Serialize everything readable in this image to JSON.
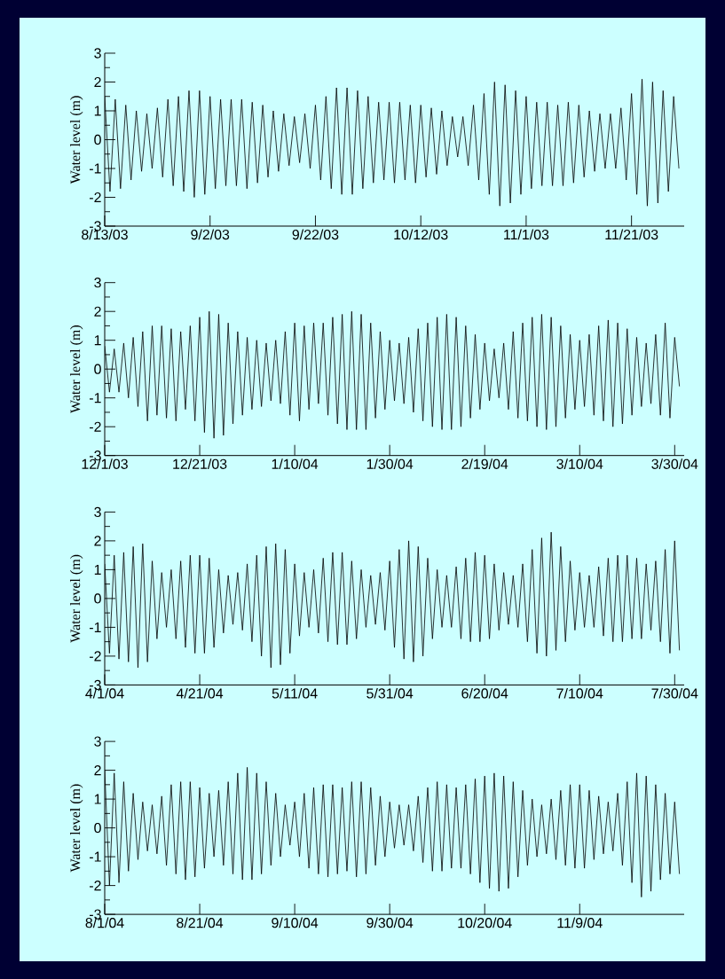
{
  "chart_data": [
    {
      "type": "line",
      "ylabel": "Water level (m)",
      "color": "#000000",
      "xlim": [
        "2003-08-13",
        "2003-12-01"
      ],
      "ylim": [
        -3,
        3
      ],
      "yticks": [
        -3,
        {
          "value": -2.5,
          "label": null
        },
        -2,
        {
          "value": -1.5,
          "label": null
        },
        -1,
        {
          "value": -0.5,
          "label": null
        },
        0,
        {
          "value": 0.5,
          "label": null
        },
        1,
        {
          "value": 1.5,
          "label": null
        },
        2,
        {
          "value": 2.5,
          "label": null
        },
        3
      ],
      "xticks": [
        {
          "value": "2003-08-13",
          "label": "8/13/03"
        },
        {
          "value": "2003-09-02",
          "label": "9/2/03"
        },
        {
          "value": "2003-09-22",
          "label": "9/22/03"
        },
        {
          "value": "2003-10-12",
          "label": "10/12/03"
        },
        {
          "value": "2003-11-01",
          "label": "11/1/03"
        },
        {
          "value": "2003-11-21",
          "label": "11/21/03"
        }
      ],
      "x": [
        "2003-08-13",
        "2003-08-14",
        "2003-08-15",
        "2003-08-16",
        "2003-08-17",
        "2003-08-18",
        "2003-08-19",
        "2003-08-20",
        "2003-08-21",
        "2003-08-22",
        "2003-08-23",
        "2003-08-24",
        "2003-08-25",
        "2003-08-26",
        "2003-08-27",
        "2003-08-28",
        "2003-08-29",
        "2003-08-30",
        "2003-08-31",
        "2003-09-01",
        "2003-09-02",
        "2003-09-03",
        "2003-09-04",
        "2003-09-05",
        "2003-09-06",
        "2003-09-07",
        "2003-09-08",
        "2003-09-09",
        "2003-09-10",
        "2003-09-11",
        "2003-09-12",
        "2003-09-13",
        "2003-09-14",
        "2003-09-15",
        "2003-09-16",
        "2003-09-17",
        "2003-09-18",
        "2003-09-19",
        "2003-09-20",
        "2003-09-21",
        "2003-09-22",
        "2003-09-23",
        "2003-09-24",
        "2003-09-25",
        "2003-09-26",
        "2003-09-27",
        "2003-09-28",
        "2003-09-29",
        "2003-09-30",
        "2003-10-01",
        "2003-10-02",
        "2003-10-03",
        "2003-10-04",
        "2003-10-05",
        "2003-10-06",
        "2003-10-07",
        "2003-10-08",
        "2003-10-09",
        "2003-10-10",
        "2003-10-11",
        "2003-10-12",
        "2003-10-13",
        "2003-10-14",
        "2003-10-15",
        "2003-10-16",
        "2003-10-17",
        "2003-10-18",
        "2003-10-19",
        "2003-10-20",
        "2003-10-21",
        "2003-10-22",
        "2003-10-23",
        "2003-10-24",
        "2003-10-25",
        "2003-10-26",
        "2003-10-27",
        "2003-10-28",
        "2003-10-29",
        "2003-10-30",
        "2003-10-31",
        "2003-11-01",
        "2003-11-02",
        "2003-11-03",
        "2003-11-04",
        "2003-11-05",
        "2003-11-06",
        "2003-11-07",
        "2003-11-08",
        "2003-11-09",
        "2003-11-10",
        "2003-11-11",
        "2003-11-12",
        "2003-11-13",
        "2003-11-14",
        "2003-11-15",
        "2003-11-16",
        "2003-11-17",
        "2003-11-18",
        "2003-11-19",
        "2003-11-20",
        "2003-11-21",
        "2003-11-22",
        "2003-11-23",
        "2003-11-24",
        "2003-11-25",
        "2003-11-26",
        "2003-11-27",
        "2003-11-28",
        "2003-11-29",
        "2003-11-30"
      ],
      "values": [
        1.5,
        -1.8,
        1.4,
        -1.7,
        1.2,
        -1.4,
        1.0,
        -1.1,
        0.9,
        -1.0,
        1.1,
        -1.3,
        1.4,
        -1.6,
        1.5,
        -1.8,
        1.7,
        -2.0,
        1.7,
        -1.9,
        1.5,
        -1.7,
        1.4,
        -1.6,
        1.4,
        -1.6,
        1.4,
        -1.7,
        1.3,
        -1.5,
        1.2,
        -1.3,
        1.0,
        -1.1,
        0.9,
        -0.9,
        0.8,
        -0.8,
        0.9,
        -1.0,
        1.2,
        -1.4,
        1.5,
        -1.7,
        1.8,
        -1.9,
        1.8,
        -1.9,
        1.7,
        -1.7,
        1.5,
        -1.5,
        1.3,
        -1.4,
        1.3,
        -1.5,
        1.3,
        -1.4,
        1.2,
        -1.5,
        1.2,
        -1.3,
        1.1,
        -1.2,
        1.0,
        -0.9,
        0.8,
        -0.6,
        0.8,
        -0.9,
        1.2,
        -1.4,
        1.6,
        -1.9,
        2.0,
        -2.3,
        1.9,
        -2.2,
        1.7,
        -1.9,
        1.5,
        -1.7,
        1.3,
        -1.6,
        1.3,
        -1.6,
        1.2,
        -1.6,
        1.3,
        -1.5,
        1.2,
        -1.3,
        1.0,
        -1.1,
        0.9,
        -1.0,
        0.9,
        -1.0,
        1.1,
        -1.4,
        1.6,
        -1.9,
        2.1,
        -2.3,
        2.0,
        -2.2,
        1.7,
        -1.8,
        1.5,
        -1.0
      ]
    },
    {
      "type": "line",
      "ylabel": "Water level (m)",
      "color": "#000000",
      "xlim": [
        "2003-12-01",
        "2004-04-01"
      ],
      "ylim": [
        -3,
        3
      ],
      "yticks": [
        -3,
        {
          "value": -2.5,
          "label": null
        },
        -2,
        {
          "value": -1.5,
          "label": null
        },
        -1,
        {
          "value": -0.5,
          "label": null
        },
        0,
        {
          "value": 0.5,
          "label": null
        },
        1,
        {
          "value": 1.5,
          "label": null
        },
        2,
        {
          "value": 2.5,
          "label": null
        },
        3
      ],
      "xticks": [
        {
          "value": "2003-12-01",
          "label": "12/1/03"
        },
        {
          "value": "2003-12-21",
          "label": "12/21/03"
        },
        {
          "value": "2004-01-10",
          "label": "1/10/04"
        },
        {
          "value": "2004-01-30",
          "label": "1/30/04"
        },
        {
          "value": "2004-02-19",
          "label": "2/19/04"
        },
        {
          "value": "2004-03-10",
          "label": "3/10/04"
        },
        {
          "value": "2004-03-30",
          "label": "3/30/04"
        }
      ],
      "x": [
        "2003-12-01",
        "2003-12-02",
        "2003-12-03",
        "2003-12-04",
        "2003-12-05",
        "2003-12-06",
        "2003-12-07",
        "2003-12-08",
        "2003-12-09",
        "2003-12-10",
        "2003-12-11",
        "2003-12-12",
        "2003-12-13",
        "2003-12-14",
        "2003-12-15",
        "2003-12-16",
        "2003-12-17",
        "2003-12-18",
        "2003-12-19",
        "2003-12-20",
        "2003-12-21",
        "2003-12-22",
        "2003-12-23",
        "2003-12-24",
        "2003-12-25",
        "2003-12-26",
        "2003-12-27",
        "2003-12-28",
        "2003-12-29",
        "2003-12-30",
        "2003-12-31",
        "2004-01-01",
        "2004-01-02",
        "2004-01-03",
        "2004-01-04",
        "2004-01-05",
        "2004-01-06",
        "2004-01-07",
        "2004-01-08",
        "2004-01-09",
        "2004-01-10",
        "2004-01-11",
        "2004-01-12",
        "2004-01-13",
        "2004-01-14",
        "2004-01-15",
        "2004-01-16",
        "2004-01-17",
        "2004-01-18",
        "2004-01-19",
        "2004-01-20",
        "2004-01-21",
        "2004-01-22",
        "2004-01-23",
        "2004-01-24",
        "2004-01-25",
        "2004-01-26",
        "2004-01-27",
        "2004-01-28",
        "2004-01-29",
        "2004-01-30",
        "2004-01-31",
        "2004-02-01",
        "2004-02-02",
        "2004-02-03",
        "2004-02-04",
        "2004-02-05",
        "2004-02-06",
        "2004-02-07",
        "2004-02-08",
        "2004-02-09",
        "2004-02-10",
        "2004-02-11",
        "2004-02-12",
        "2004-02-13",
        "2004-02-14",
        "2004-02-15",
        "2004-02-16",
        "2004-02-17",
        "2004-02-18",
        "2004-02-19",
        "2004-02-20",
        "2004-02-21",
        "2004-02-22",
        "2004-02-23",
        "2004-02-24",
        "2004-02-25",
        "2004-02-26",
        "2004-02-27",
        "2004-02-28",
        "2004-02-29",
        "2004-03-01",
        "2004-03-02",
        "2004-03-03",
        "2004-03-04",
        "2004-03-05",
        "2004-03-06",
        "2004-03-07",
        "2004-03-08",
        "2004-03-09",
        "2004-03-10",
        "2004-03-11",
        "2004-03-12",
        "2004-03-13",
        "2004-03-14",
        "2004-03-15",
        "2004-03-16",
        "2004-03-17",
        "2004-03-18",
        "2004-03-19",
        "2004-03-20",
        "2004-03-21",
        "2004-03-22",
        "2004-03-23",
        "2004-03-24",
        "2004-03-25",
        "2004-03-26",
        "2004-03-27",
        "2004-03-28",
        "2004-03-29",
        "2004-03-30",
        "2004-03-31"
      ],
      "values": [
        0.8,
        -0.8,
        0.7,
        -0.8,
        0.9,
        -1.0,
        1.1,
        -1.3,
        1.3,
        -1.8,
        1.5,
        -1.6,
        1.5,
        -1.7,
        1.4,
        -1.8,
        1.3,
        -1.4,
        1.5,
        -1.8,
        1.8,
        -2.2,
        2.0,
        -2.4,
        1.9,
        -2.3,
        1.6,
        -1.9,
        1.3,
        -1.6,
        1.1,
        -1.4,
        1.0,
        -1.3,
        0.9,
        -1.1,
        1.0,
        -1.2,
        1.3,
        -1.6,
        1.6,
        -1.8,
        1.5,
        -1.4,
        1.6,
        -1.2,
        1.6,
        -1.6,
        1.8,
        -1.9,
        1.9,
        -2.1,
        2.0,
        -2.1,
        1.9,
        -2.1,
        1.6,
        -1.7,
        1.3,
        -1.4,
        1.0,
        -1.1,
        0.9,
        -1.2,
        1.1,
        -1.5,
        1.4,
        -1.8,
        1.6,
        -2.0,
        1.8,
        -2.1,
        1.9,
        -2.1,
        1.8,
        -2.0,
        1.5,
        -1.7,
        1.2,
        -1.4,
        0.9,
        -1.1,
        0.7,
        -1.0,
        0.9,
        -1.4,
        1.3,
        -1.7,
        1.6,
        -1.8,
        1.8,
        -2.0,
        1.9,
        -2.1,
        1.8,
        -2.0,
        1.5,
        -1.7,
        1.2,
        -1.4,
        1.0,
        -1.3,
        1.2,
        -1.6,
        1.5,
        -1.8,
        1.7,
        -2.0,
        1.6,
        -1.9,
        1.4,
        -1.6,
        1.1,
        -1.3,
        0.9,
        -1.2,
        1.2,
        -1.6,
        1.6,
        -1.7,
        1.1,
        -0.6
      ]
    },
    {
      "type": "line",
      "ylabel": "Water level (m)",
      "color": "#000000",
      "xlim": [
        "2004-04-01",
        "2004-08-01"
      ],
      "ylim": [
        -3,
        3
      ],
      "yticks": [
        -3,
        {
          "value": -2.5,
          "label": null
        },
        -2,
        {
          "value": -1.5,
          "label": null
        },
        -1,
        {
          "value": -0.5,
          "label": null
        },
        0,
        {
          "value": 0.5,
          "label": null
        },
        1,
        {
          "value": 1.5,
          "label": null
        },
        2,
        {
          "value": 2.5,
          "label": null
        },
        3
      ],
      "xticks": [
        {
          "value": "2004-04-01",
          "label": "4/1/04"
        },
        {
          "value": "2004-04-21",
          "label": "4/21/04"
        },
        {
          "value": "2004-05-11",
          "label": "5/11/04"
        },
        {
          "value": "2004-05-31",
          "label": "5/31/04"
        },
        {
          "value": "2004-06-20",
          "label": "6/20/04"
        },
        {
          "value": "2004-07-10",
          "label": "7/10/04"
        },
        {
          "value": "2004-07-30",
          "label": "7/30/04"
        }
      ],
      "x": [
        "2004-04-01",
        "2004-04-02",
        "2004-04-03",
        "2004-04-04",
        "2004-04-05",
        "2004-04-06",
        "2004-04-07",
        "2004-04-08",
        "2004-04-09",
        "2004-04-10",
        "2004-04-11",
        "2004-04-12",
        "2004-04-13",
        "2004-04-14",
        "2004-04-15",
        "2004-04-16",
        "2004-04-17",
        "2004-04-18",
        "2004-04-19",
        "2004-04-20",
        "2004-04-21",
        "2004-04-22",
        "2004-04-23",
        "2004-04-24",
        "2004-04-25",
        "2004-04-26",
        "2004-04-27",
        "2004-04-28",
        "2004-04-29",
        "2004-04-30",
        "2004-05-01",
        "2004-05-02",
        "2004-05-03",
        "2004-05-04",
        "2004-05-05",
        "2004-05-06",
        "2004-05-07",
        "2004-05-08",
        "2004-05-09",
        "2004-05-10",
        "2004-05-11",
        "2004-05-12",
        "2004-05-13",
        "2004-05-14",
        "2004-05-15",
        "2004-05-16",
        "2004-05-17",
        "2004-05-18",
        "2004-05-19",
        "2004-05-20",
        "2004-05-21",
        "2004-05-22",
        "2004-05-23",
        "2004-05-24",
        "2004-05-25",
        "2004-05-26",
        "2004-05-27",
        "2004-05-28",
        "2004-05-29",
        "2004-05-30",
        "2004-05-31",
        "2004-06-01",
        "2004-06-02",
        "2004-06-03",
        "2004-06-04",
        "2004-06-05",
        "2004-06-06",
        "2004-06-07",
        "2004-06-08",
        "2004-06-09",
        "2004-06-10",
        "2004-06-11",
        "2004-06-12",
        "2004-06-13",
        "2004-06-14",
        "2004-06-15",
        "2004-06-16",
        "2004-06-17",
        "2004-06-18",
        "2004-06-19",
        "2004-06-20",
        "2004-06-21",
        "2004-06-22",
        "2004-06-23",
        "2004-06-24",
        "2004-06-25",
        "2004-06-26",
        "2004-06-27",
        "2004-06-28",
        "2004-06-29",
        "2004-06-30",
        "2004-07-01",
        "2004-07-02",
        "2004-07-03",
        "2004-07-04",
        "2004-07-05",
        "2004-07-06",
        "2004-07-07",
        "2004-07-08",
        "2004-07-09",
        "2004-07-10",
        "2004-07-11",
        "2004-07-12",
        "2004-07-13",
        "2004-07-14",
        "2004-07-15",
        "2004-07-16",
        "2004-07-17",
        "2004-07-18",
        "2004-07-19",
        "2004-07-20",
        "2004-07-21",
        "2004-07-22",
        "2004-07-23",
        "2004-07-24",
        "2004-07-25",
        "2004-07-26",
        "2004-07-27",
        "2004-07-28",
        "2004-07-29",
        "2004-07-30",
        "2004-07-31"
      ],
      "values": [
        1.2,
        -1.9,
        1.5,
        -2.1,
        1.6,
        -2.2,
        1.8,
        -2.4,
        1.9,
        -2.2,
        1.3,
        -1.4,
        0.9,
        -1.0,
        1.0,
        -1.4,
        1.3,
        -1.7,
        1.5,
        -1.9,
        1.5,
        -1.9,
        1.4,
        -1.7,
        1.0,
        -1.2,
        0.8,
        -0.9,
        0.9,
        -1.1,
        1.2,
        -1.5,
        1.5,
        -2.0,
        1.8,
        -2.4,
        1.9,
        -2.3,
        1.7,
        -1.9,
        1.2,
        -1.3,
        0.9,
        -1.0,
        1.0,
        -1.2,
        1.4,
        -1.5,
        1.6,
        -1.6,
        1.6,
        -1.6,
        1.3,
        -1.4,
        1.0,
        -1.0,
        0.8,
        -0.9,
        0.9,
        -1.1,
        1.3,
        -1.7,
        1.7,
        -2.1,
        2.0,
        -2.2,
        1.8,
        -2.0,
        1.4,
        -1.4,
        1.0,
        -1.0,
        0.8,
        -1.0,
        1.1,
        -1.4,
        1.4,
        -1.5,
        1.6,
        -1.5,
        1.5,
        -1.4,
        1.2,
        -1.1,
        0.9,
        -0.9,
        0.8,
        -1.0,
        1.2,
        -1.5,
        1.7,
        -1.9,
        2.1,
        -2.0,
        2.3,
        -1.8,
        1.8,
        -1.5,
        1.3,
        -1.1,
        0.9,
        -1.0,
        0.8,
        -1.0,
        1.1,
        -1.3,
        1.4,
        -1.5,
        1.5,
        -1.5,
        1.5,
        -1.4,
        1.4,
        -1.4,
        1.2,
        -1.1,
        1.3,
        -1.5,
        1.7,
        -1.9,
        2.0,
        -1.8
      ]
    },
    {
      "type": "line",
      "ylabel": "Water level (m)",
      "color": "#000000",
      "xlim": [
        "2004-08-01",
        "2004-12-01"
      ],
      "ylim": [
        -3,
        3
      ],
      "yticks": [
        -3,
        {
          "value": -2.5,
          "label": null
        },
        -2,
        {
          "value": -1.5,
          "label": null
        },
        -1,
        {
          "value": -0.5,
          "label": null
        },
        0,
        {
          "value": 0.5,
          "label": null
        },
        1,
        {
          "value": 1.5,
          "label": null
        },
        2,
        {
          "value": 2.5,
          "label": null
        },
        3
      ],
      "xticks": [
        {
          "value": "2004-08-01",
          "label": "8/1/04"
        },
        {
          "value": "2004-08-21",
          "label": "8/21/04"
        },
        {
          "value": "2004-09-10",
          "label": "9/10/04"
        },
        {
          "value": "2004-09-30",
          "label": "9/30/04"
        },
        {
          "value": "2004-10-20",
          "label": "10/20/04"
        },
        {
          "value": "2004-11-09",
          "label": "11/9/04"
        }
      ],
      "x": [
        "2004-08-01",
        "2004-08-02",
        "2004-08-03",
        "2004-08-04",
        "2004-08-05",
        "2004-08-06",
        "2004-08-07",
        "2004-08-08",
        "2004-08-09",
        "2004-08-10",
        "2004-08-11",
        "2004-08-12",
        "2004-08-13",
        "2004-08-14",
        "2004-08-15",
        "2004-08-16",
        "2004-08-17",
        "2004-08-18",
        "2004-08-19",
        "2004-08-20",
        "2004-08-21",
        "2004-08-22",
        "2004-08-23",
        "2004-08-24",
        "2004-08-25",
        "2004-08-26",
        "2004-08-27",
        "2004-08-28",
        "2004-08-29",
        "2004-08-30",
        "2004-08-31",
        "2004-09-01",
        "2004-09-02",
        "2004-09-03",
        "2004-09-04",
        "2004-09-05",
        "2004-09-06",
        "2004-09-07",
        "2004-09-08",
        "2004-09-09",
        "2004-09-10",
        "2004-09-11",
        "2004-09-12",
        "2004-09-13",
        "2004-09-14",
        "2004-09-15",
        "2004-09-16",
        "2004-09-17",
        "2004-09-18",
        "2004-09-19",
        "2004-09-20",
        "2004-09-21",
        "2004-09-22",
        "2004-09-23",
        "2004-09-24",
        "2004-09-25",
        "2004-09-26",
        "2004-09-27",
        "2004-09-28",
        "2004-09-29",
        "2004-09-30",
        "2004-10-01",
        "2004-10-02",
        "2004-10-03",
        "2004-10-04",
        "2004-10-05",
        "2004-10-06",
        "2004-10-07",
        "2004-10-08",
        "2004-10-09",
        "2004-10-10",
        "2004-10-11",
        "2004-10-12",
        "2004-10-13",
        "2004-10-14",
        "2004-10-15",
        "2004-10-16",
        "2004-10-17",
        "2004-10-18",
        "2004-10-19",
        "2004-10-20",
        "2004-10-21",
        "2004-10-22",
        "2004-10-23",
        "2004-10-24",
        "2004-10-25",
        "2004-10-26",
        "2004-10-27",
        "2004-10-28",
        "2004-10-29",
        "2004-10-30",
        "2004-10-31",
        "2004-11-01",
        "2004-11-02",
        "2004-11-03",
        "2004-11-04",
        "2004-11-05",
        "2004-11-06",
        "2004-11-07",
        "2004-11-08",
        "2004-11-09",
        "2004-11-10",
        "2004-11-11",
        "2004-11-12",
        "2004-11-13",
        "2004-11-14",
        "2004-11-15",
        "2004-11-16",
        "2004-11-17",
        "2004-11-18",
        "2004-11-19",
        "2004-11-20",
        "2004-11-21",
        "2004-11-22",
        "2004-11-23",
        "2004-11-24",
        "2004-11-25",
        "2004-11-26",
        "2004-11-27",
        "2004-11-28",
        "2004-11-29",
        "2004-11-30"
      ],
      "values": [
        2.0,
        -2.0,
        1.9,
        -1.9,
        1.6,
        -1.5,
        1.2,
        -1.1,
        0.9,
        -0.8,
        0.8,
        -0.9,
        1.1,
        -1.3,
        1.5,
        -1.6,
        1.6,
        -1.8,
        1.6,
        -1.7,
        1.4,
        -1.4,
        1.2,
        -1.0,
        1.3,
        -1.3,
        1.6,
        -1.6,
        1.9,
        -1.8,
        2.1,
        -1.8,
        1.9,
        -1.6,
        1.6,
        -1.3,
        1.2,
        -1.0,
        0.8,
        -0.6,
        0.9,
        -1.0,
        1.2,
        -1.4,
        1.4,
        -1.6,
        1.5,
        -1.7,
        1.5,
        -1.6,
        1.4,
        -1.5,
        1.6,
        -1.7,
        1.6,
        -1.6,
        1.4,
        -1.3,
        1.1,
        -1.0,
        0.9,
        -0.7,
        0.8,
        -0.6,
        0.8,
        -0.8,
        1.1,
        -1.2,
        1.4,
        -1.5,
        1.6,
        -1.5,
        1.5,
        -1.4,
        1.4,
        -1.4,
        1.5,
        -1.6,
        1.7,
        -1.9,
        1.8,
        -2.1,
        1.9,
        -2.2,
        1.8,
        -2.1,
        1.6,
        -1.7,
        1.3,
        -1.3,
        1.0,
        -1.0,
        0.8,
        -0.9,
        1.0,
        -1.1,
        1.3,
        -1.3,
        1.5,
        -1.4,
        1.5,
        -1.4,
        1.3,
        -1.1,
        1.1,
        -0.9,
        0.9,
        -0.8,
        1.2,
        -1.3,
        1.6,
        -1.9,
        1.9,
        -2.4,
        1.8,
        -2.2,
        1.5,
        -1.8,
        1.2,
        -1.6,
        0.9,
        -1.6
      ]
    }
  ]
}
